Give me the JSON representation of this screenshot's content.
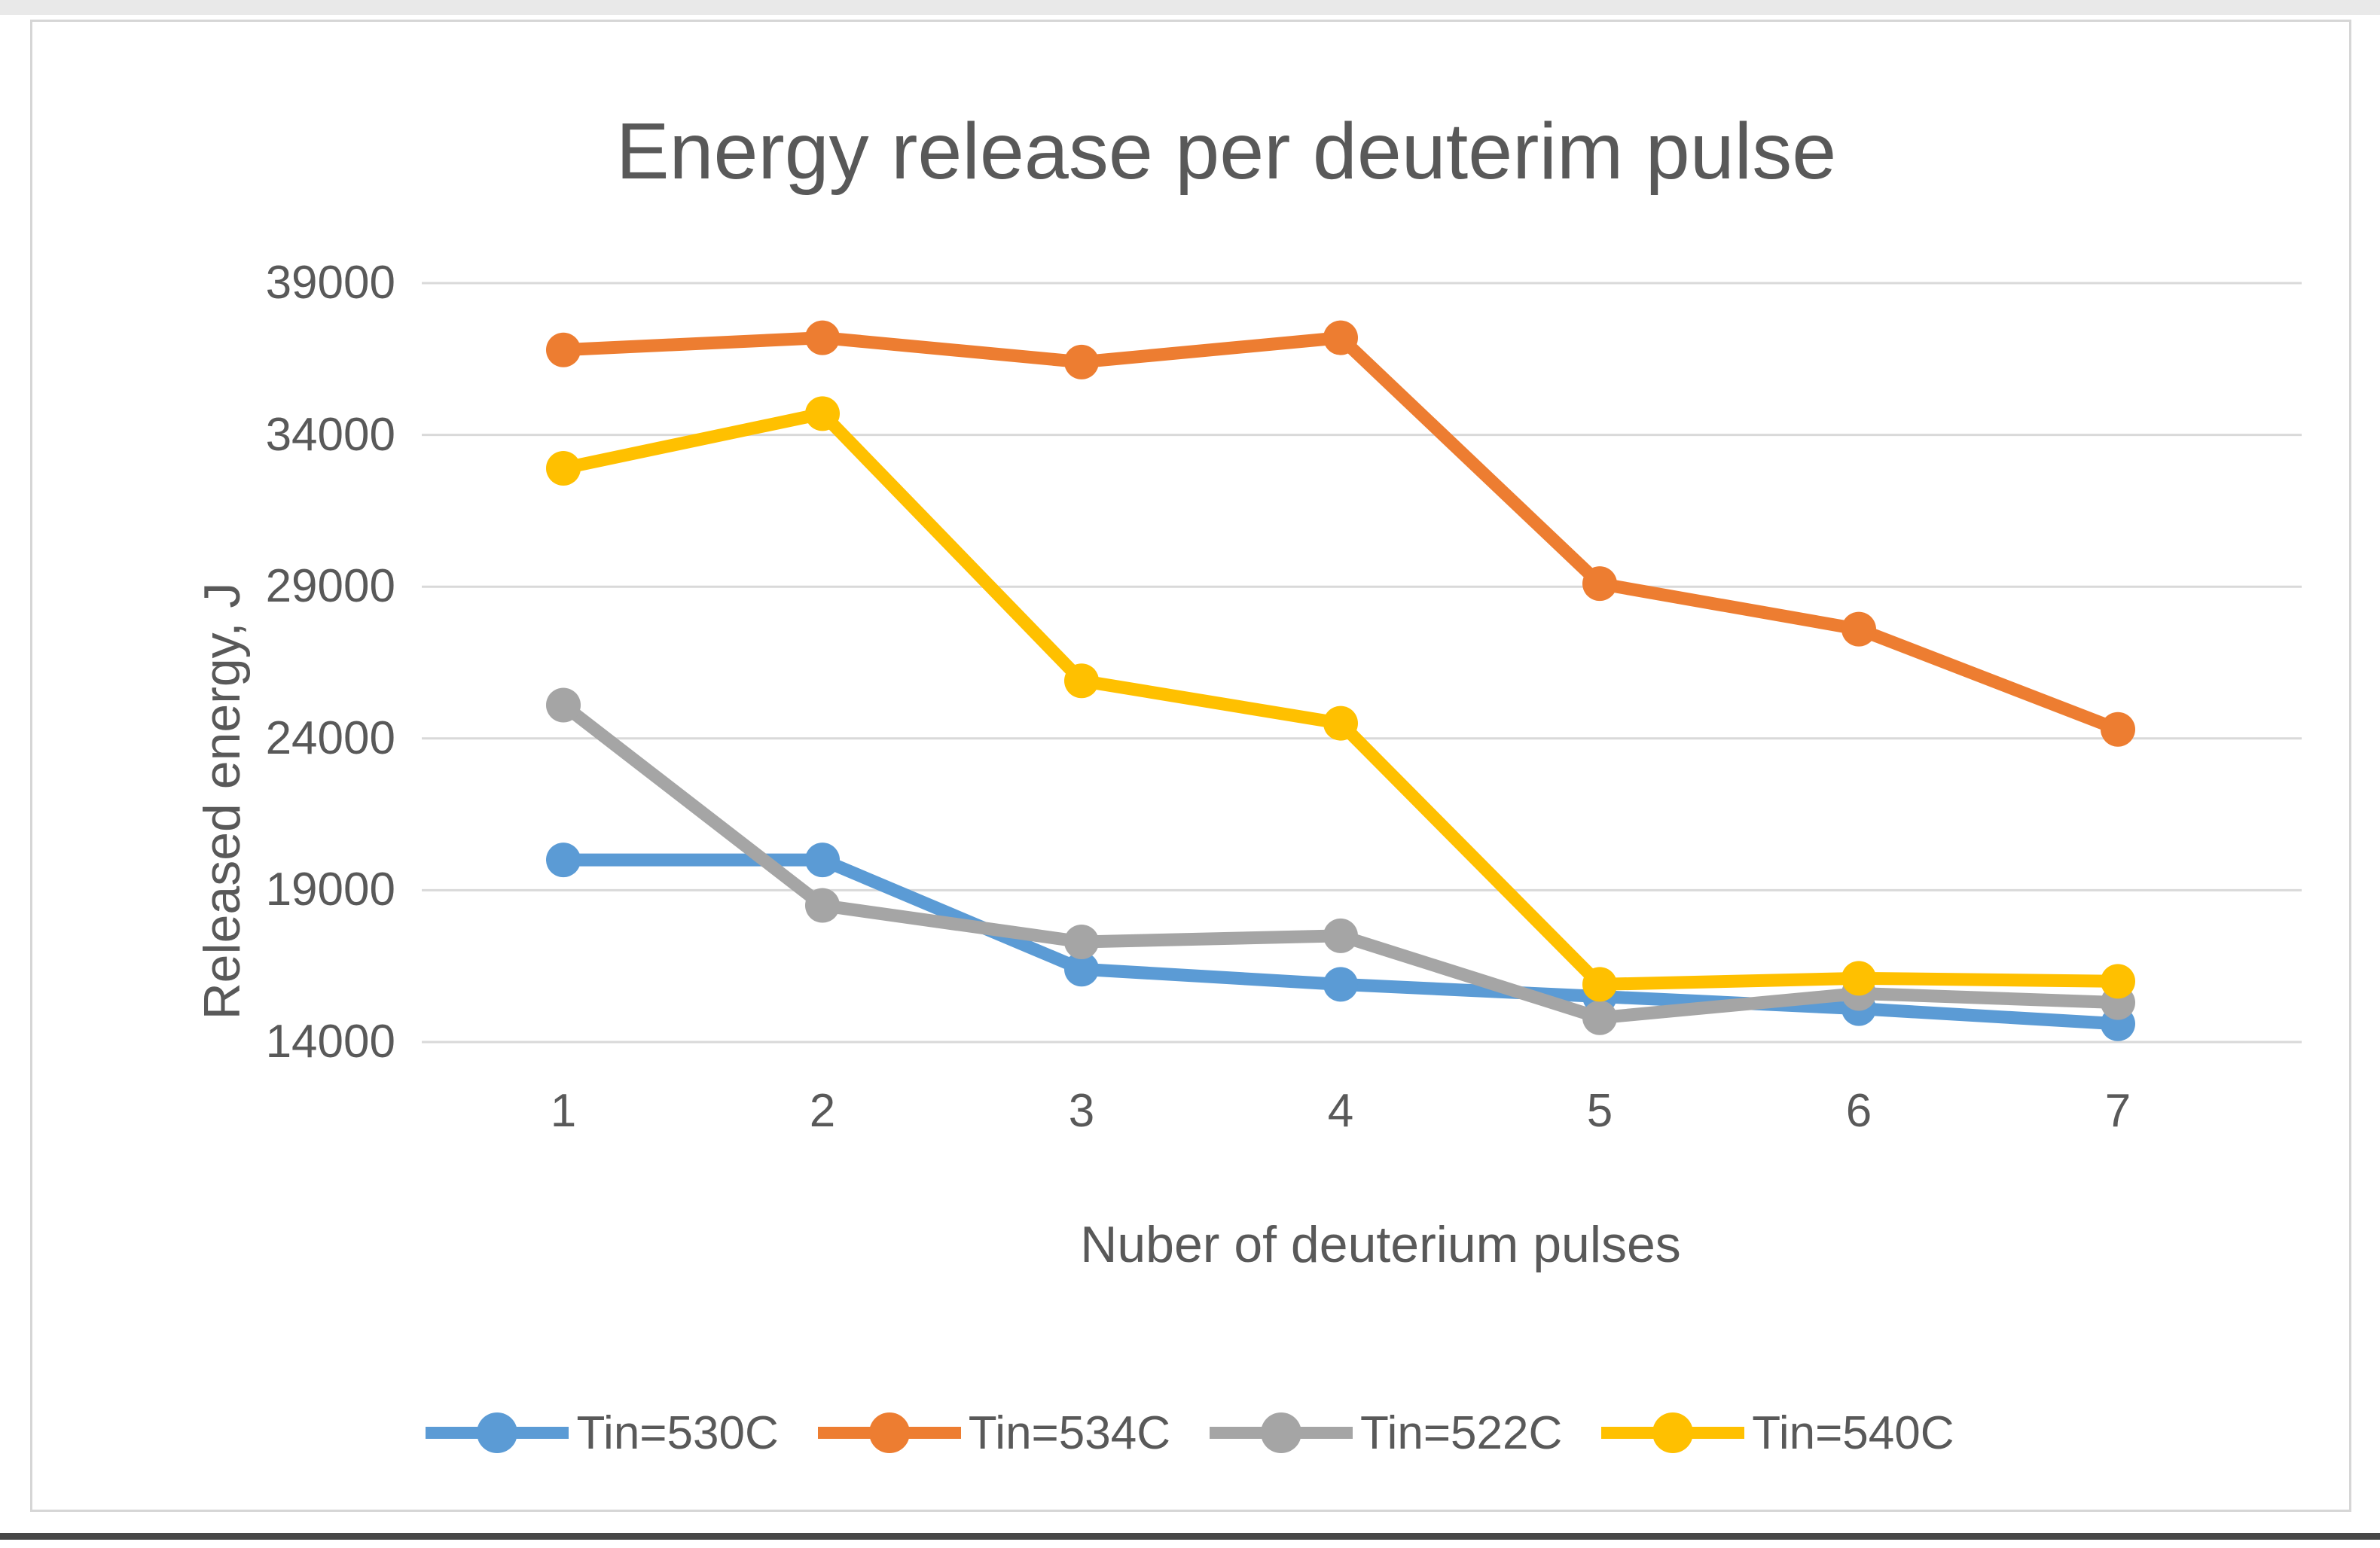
{
  "chart_data": {
    "type": "line",
    "title": "Energy release per deuterim pulse",
    "xlabel": "Nuber of deuterium pulses",
    "ylabel": "Released energy, J",
    "x": [
      1,
      2,
      3,
      4,
      5,
      6,
      7
    ],
    "y_ticks": [
      39000,
      34000,
      29000,
      24000,
      19000,
      14000
    ],
    "ylim": [
      14000,
      39000
    ],
    "grid": "horizontal",
    "legend_position": "bottom",
    "series": [
      {
        "name": "Tin=530C",
        "color": "#5B9BD5",
        "values": [
          20000,
          20000,
          16400,
          15900,
          15500,
          15100,
          14600
        ]
      },
      {
        "name": "Tin=534C",
        "color": "#ED7D31",
        "values": [
          36800,
          37200,
          36400,
          37200,
          29100,
          27600,
          24300
        ]
      },
      {
        "name": "Tin=522C",
        "color": "#A5A5A5",
        "values": [
          25100,
          18500,
          17300,
          17500,
          14800,
          15600,
          15300
        ]
      },
      {
        "name": "Tin=540C",
        "color": "#FFC000",
        "values": [
          32900,
          34700,
          25900,
          24500,
          15900,
          16100,
          16000
        ]
      }
    ]
  },
  "ui_colors": {
    "grid_line": "#D9D9D9",
    "text": "#595959",
    "chart_border": "#D6D6D6",
    "top_strip": "#E9E9E9",
    "bottom_rule": "#474747",
    "background": "#FFFFFF"
  }
}
